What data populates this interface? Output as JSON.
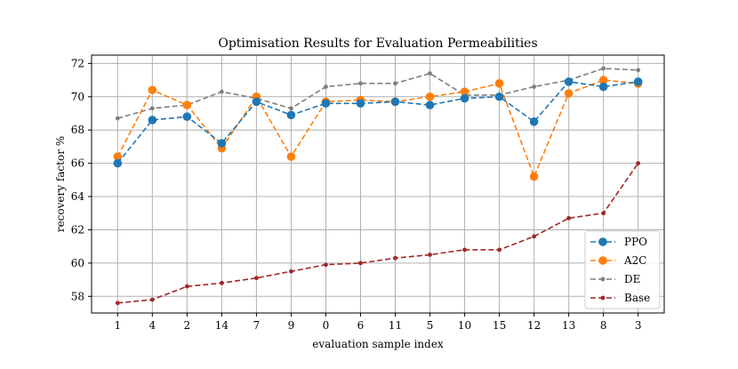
{
  "chart_data": {
    "type": "line",
    "title": "Optimisation Results for Evaluation Permeabilities",
    "xlabel": "evaluation sample index",
    "ylabel": "recovery factor %",
    "categories": [
      "1",
      "4",
      "2",
      "14",
      "7",
      "9",
      "0",
      "6",
      "11",
      "5",
      "10",
      "15",
      "12",
      "13",
      "8",
      "3"
    ],
    "ylim": [
      57,
      72.5
    ],
    "yticks": [
      58,
      60,
      62,
      64,
      66,
      68,
      70,
      72
    ],
    "grid": true,
    "legend_position": "bottom-right",
    "series": [
      {
        "name": "PPO",
        "color": "#1f77b4",
        "marker": "large",
        "values": [
          66.0,
          68.6,
          68.8,
          67.2,
          69.7,
          68.9,
          69.6,
          69.6,
          69.7,
          69.5,
          69.9,
          70.0,
          68.5,
          70.9,
          70.6,
          70.9
        ]
      },
      {
        "name": "A2C",
        "color": "#ff7f0e",
        "marker": "large",
        "values": [
          66.4,
          70.4,
          69.5,
          66.9,
          70.0,
          66.4,
          69.7,
          69.8,
          69.7,
          70.0,
          70.3,
          70.8,
          65.2,
          70.2,
          71.0,
          70.8
        ]
      },
      {
        "name": "DE",
        "color": "#7f7f7f",
        "marker": "small",
        "values": [
          68.7,
          69.3,
          69.5,
          70.3,
          69.9,
          69.3,
          70.6,
          70.8,
          70.8,
          71.4,
          70.1,
          70.1,
          70.6,
          71.0,
          71.7,
          71.6
        ]
      },
      {
        "name": "Base",
        "color": "#a02828",
        "marker": "small",
        "values": [
          57.6,
          57.8,
          58.6,
          58.8,
          59.1,
          59.5,
          59.9,
          60.0,
          60.3,
          60.5,
          60.8,
          60.8,
          61.6,
          62.7,
          63.0,
          66.0
        ]
      }
    ]
  }
}
